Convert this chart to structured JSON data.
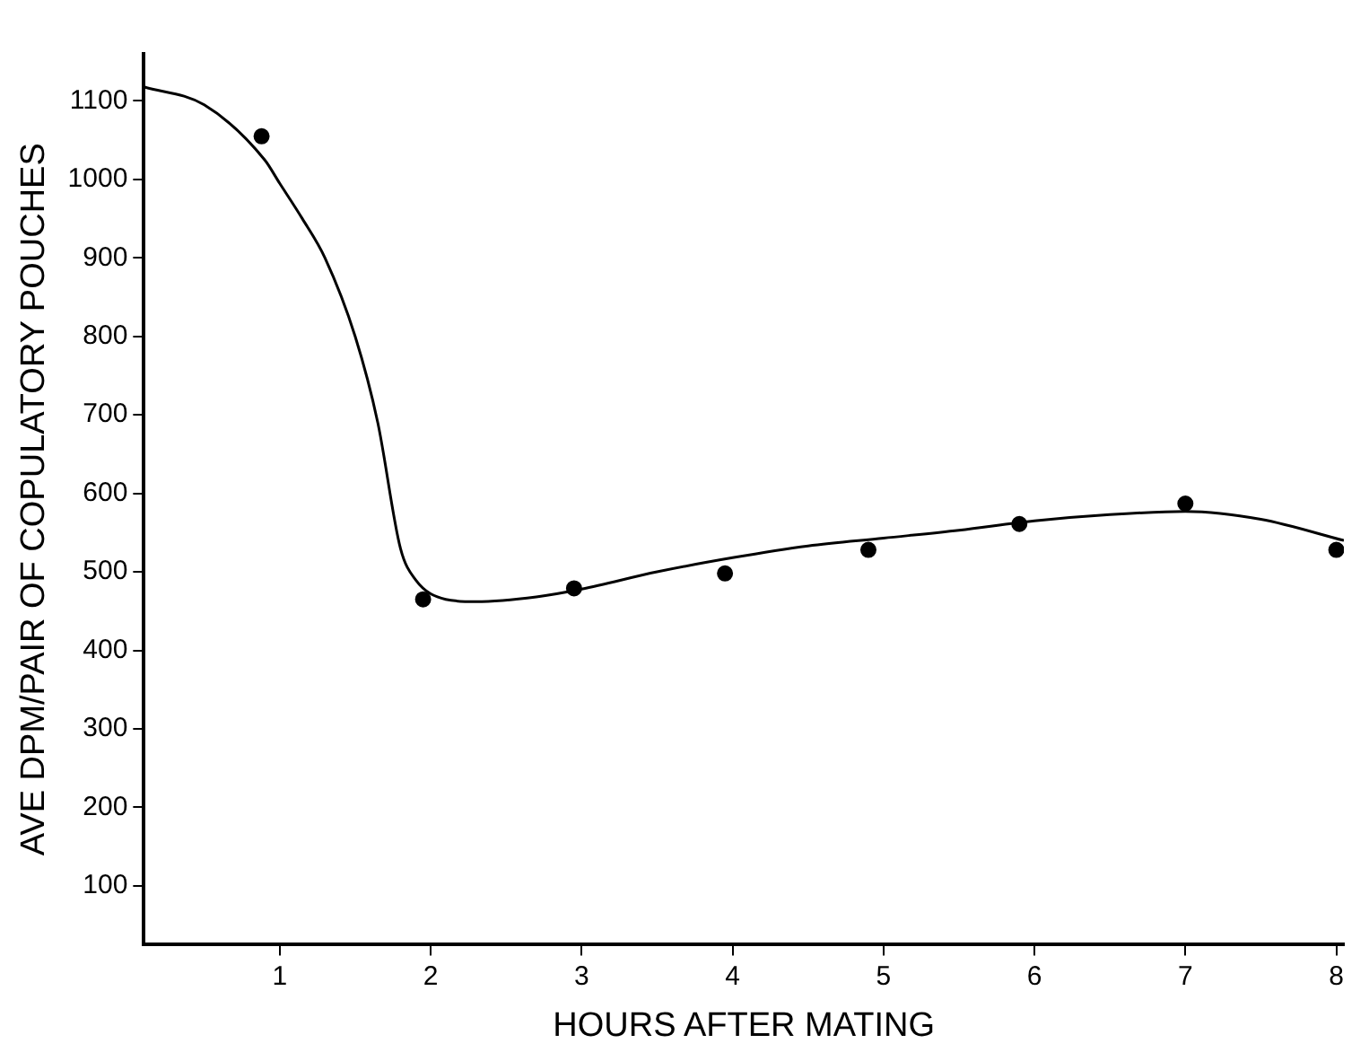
{
  "chart_data": {
    "type": "scatter",
    "xlabel": "HOURS AFTER MATING",
    "ylabel": "AVE DPM/PAIR OF COPULATORY POUCHES",
    "xlim": [
      0.1,
      8.05
    ],
    "xticks": [
      1,
      2,
      3,
      4,
      5,
      6,
      7,
      8
    ],
    "ylim": [
      25,
      1160
    ],
    "yticks": [
      100,
      200,
      300,
      400,
      500,
      600,
      700,
      800,
      900,
      1000,
      1100
    ],
    "grid": false,
    "legend": false,
    "marker": "circle",
    "series": [
      {
        "color": "#000000",
        "x": [
          0.88,
          1.95,
          2.95,
          3.95,
          4.9,
          5.9,
          7.0,
          8.0
        ],
        "values": [
          1055,
          465,
          479,
          498,
          528,
          561,
          587,
          528
        ]
      },
      {
        "type": "line",
        "color": "#000000",
        "marker": "none",
        "x": [
          0.1,
          0.5,
          0.9,
          1.0,
          1.15,
          1.3,
          1.5,
          1.65,
          1.8,
          1.9,
          2.1,
          2.3,
          2.7,
          3.0,
          3.5,
          4.0,
          4.5,
          5.0,
          5.5,
          6.0,
          6.5,
          7.0,
          7.5,
          8.05
        ],
        "values": [
          1118,
          1095,
          1025,
          995,
          950,
          900,
          800,
          690,
          530,
          490,
          465,
          462,
          468,
          478,
          500,
          518,
          533,
          543,
          553,
          565,
          573,
          577,
          567,
          540
        ]
      }
    ]
  }
}
